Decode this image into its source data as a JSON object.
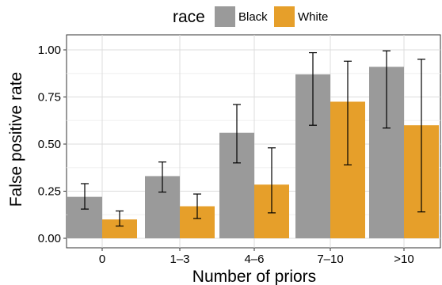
{
  "chart_data": {
    "type": "bar",
    "title": "",
    "xlabel": "Number of priors",
    "ylabel": "False positive rate",
    "ylim": [
      0,
      1.05
    ],
    "yticks": [
      "0.00",
      "0.25",
      "0.50",
      "0.75",
      "1.00"
    ],
    "ytick_values": [
      0,
      0.25,
      0.5,
      0.75,
      1.0
    ],
    "categories": [
      "0",
      "1–3",
      "4–6",
      "7–10",
      ">10"
    ],
    "legend": {
      "title": "race",
      "position": "top"
    },
    "grid": true,
    "series": [
      {
        "name": "Black",
        "color": "#9a9a9a",
        "values": [
          0.22,
          0.33,
          0.56,
          0.87,
          0.91
        ],
        "error_low": [
          0.155,
          0.245,
          0.4,
          0.6,
          0.585
        ],
        "error_high": [
          0.29,
          0.405,
          0.71,
          0.985,
          0.995
        ]
      },
      {
        "name": "White",
        "color": "#e69f2a",
        "values": [
          0.1,
          0.17,
          0.285,
          0.725,
          0.6
        ],
        "error_low": [
          0.065,
          0.105,
          0.135,
          0.39,
          0.14
        ],
        "error_high": [
          0.145,
          0.235,
          0.48,
          0.94,
          0.95
        ]
      }
    ]
  }
}
